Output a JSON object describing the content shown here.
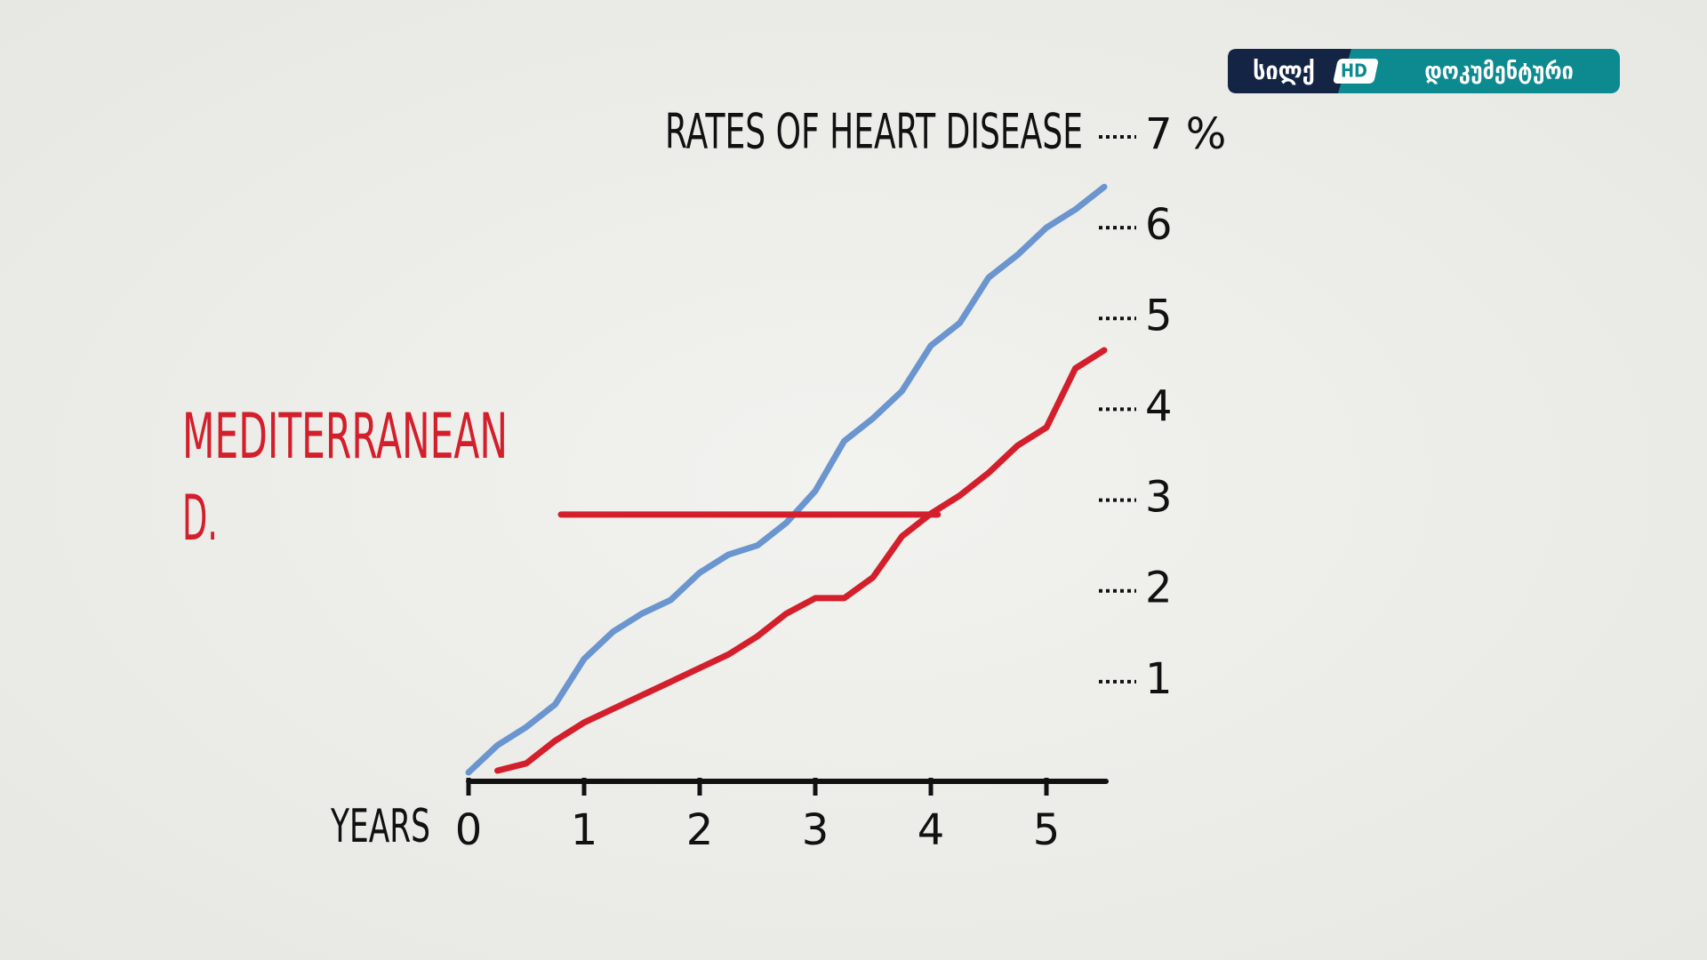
{
  "chart_data": {
    "type": "line",
    "title": "RATES OF HEART DISEASE",
    "annotations": [
      "MEDITERRANEAN",
      "D."
    ],
    "x_label": "YEARS",
    "xlim": [
      0,
      5.5
    ],
    "xticks": [
      0,
      1,
      2,
      3,
      4,
      5
    ],
    "ylim": [
      0,
      7
    ],
    "yticks": [
      1,
      2,
      3,
      4,
      5,
      6,
      {
        "value": 7,
        "label": "7 %"
      }
    ],
    "series": [
      {
        "color": "#6b95cf",
        "x": [
          0,
          0.25,
          0.5,
          0.75,
          1,
          1.25,
          1.5,
          1.75,
          2,
          2.25,
          2.5,
          2.75,
          3,
          3.25,
          3.5,
          3.75,
          4,
          4.25,
          4.5,
          4.75,
          5,
          5.25,
          5.5
        ],
        "values": [
          0,
          0.3,
          0.5,
          0.75,
          1.25,
          1.55,
          1.75,
          1.9,
          2.2,
          2.4,
          2.5,
          2.75,
          3.1,
          3.65,
          3.9,
          4.2,
          4.7,
          4.95,
          5.45,
          5.7,
          6.0,
          6.2,
          6.45
        ]
      },
      {
        "color": "#d31f2b",
        "x": [
          0.25,
          0.5,
          0.75,
          1,
          1.25,
          1.5,
          1.75,
          2,
          2.25,
          2.5,
          2.75,
          3,
          3.25,
          3.5,
          3.75,
          4,
          4.25,
          4.5,
          4.75,
          5,
          5.25,
          5.5
        ],
        "values": [
          0.02,
          0.1,
          0.35,
          0.55,
          0.7,
          0.85,
          1.0,
          1.15,
          1.3,
          1.5,
          1.75,
          1.92,
          1.92,
          2.15,
          2.6,
          2.85,
          3.05,
          3.3,
          3.6,
          3.8,
          4.45,
          4.65
        ]
      },
      {
        "color": "#d31f2b",
        "x": [
          0.8,
          4.06
        ],
        "values": [
          2.84,
          2.84
        ]
      }
    ]
  },
  "logo": {
    "brand": "სილქ",
    "badge": "HD",
    "label": "დოკუმენტური"
  }
}
